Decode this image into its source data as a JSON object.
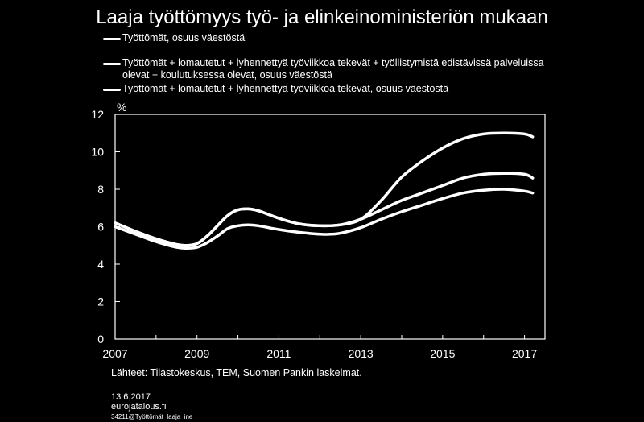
{
  "title": "Laaja työttömyys työ- ja elinkeinoministeriön mukaan",
  "legend": [
    {
      "lines": [
        "Työttömät, osuus väestöstä"
      ]
    },
    {
      "lines": [
        "Työttömät + lomautetut + lyhennettyä työviikkoa tekevät + työllistymistä edistävissä palveluissa",
        "olevat + koulutuksessa olevat, osuus väestöstä"
      ]
    },
    {
      "lines": [
        "Työttömät + lomautetut + lyhennettyä työviikkoa tekevät, osuus väestöstä"
      ]
    }
  ],
  "source": "Lähteet: Tilastokeskus, TEM, Suomen Pankin laskelmat.",
  "footer": {
    "date": "13.6.2017",
    "site": "eurojatalous.fi",
    "code": "34211@Työttömät_laaja_ine"
  },
  "colors": {
    "background": "#000000",
    "line": "#ffffff"
  },
  "chart_data": {
    "type": "line",
    "ylabel": "%",
    "xlim": [
      2007,
      2017.5
    ],
    "ylim": [
      0,
      12
    ],
    "yticks": [
      0,
      2,
      4,
      6,
      8,
      10,
      12
    ],
    "xticks": [
      2007,
      2009,
      2011,
      2013,
      2015,
      2017
    ],
    "grid": false,
    "series": [
      {
        "name": "Työttömät, osuus väestöstä",
        "x": [
          2007,
          2007.5,
          2008,
          2008.5,
          2008.75,
          2009,
          2009.25,
          2009.5,
          2009.75,
          2010,
          2010.25,
          2010.5,
          2011,
          2011.5,
          2012,
          2012.25,
          2012.5,
          2013,
          2013.5,
          2014,
          2014.5,
          2015,
          2015.5,
          2016,
          2016.5,
          2017,
          2017.2
        ],
        "values": [
          6.0,
          5.6,
          5.2,
          4.9,
          4.85,
          4.9,
          5.15,
          5.5,
          5.9,
          6.05,
          6.1,
          6.05,
          5.85,
          5.7,
          5.6,
          5.6,
          5.65,
          5.95,
          6.4,
          6.8,
          7.15,
          7.5,
          7.8,
          7.95,
          8.0,
          7.9,
          7.8
        ]
      },
      {
        "name": "Työttömät + lomautetut + lyhennettyä työviikkoa tekevät + työllistymistä edistävissä palveluissa olevat + koulutuksessa olevat, osuus väestöstä",
        "x": [
          2007,
          2007.5,
          2008,
          2008.5,
          2008.75,
          2009,
          2009.25,
          2009.5,
          2009.75,
          2010,
          2010.25,
          2010.5,
          2011,
          2011.5,
          2012,
          2012.5,
          2013,
          2013.5,
          2014,
          2014.5,
          2015,
          2015.5,
          2016,
          2016.5,
          2017,
          2017.2
        ],
        "values": [
          6.2,
          5.75,
          5.35,
          5.05,
          5.0,
          5.1,
          5.5,
          6.05,
          6.6,
          6.9,
          6.95,
          6.85,
          6.45,
          6.15,
          6.05,
          6.1,
          6.4,
          7.4,
          8.65,
          9.5,
          10.2,
          10.7,
          10.95,
          11.0,
          10.95,
          10.8
        ]
      },
      {
        "name": "Työttömät + lomautetut + lyhennettyä työviikkoa tekevät, osuus väestöstä",
        "x": [
          2007,
          2007.5,
          2008,
          2008.5,
          2008.75,
          2009,
          2009.25,
          2009.5,
          2009.75,
          2010,
          2010.25,
          2010.5,
          2011,
          2011.5,
          2012,
          2012.5,
          2013,
          2013.5,
          2014,
          2014.5,
          2015,
          2015.5,
          2016,
          2016.5,
          2017,
          2017.2
        ],
        "values": [
          6.2,
          5.75,
          5.35,
          5.05,
          5.0,
          5.1,
          5.5,
          6.05,
          6.6,
          6.9,
          6.95,
          6.85,
          6.45,
          6.15,
          6.05,
          6.1,
          6.4,
          6.9,
          7.4,
          7.8,
          8.2,
          8.6,
          8.8,
          8.85,
          8.8,
          8.6
        ]
      }
    ]
  }
}
